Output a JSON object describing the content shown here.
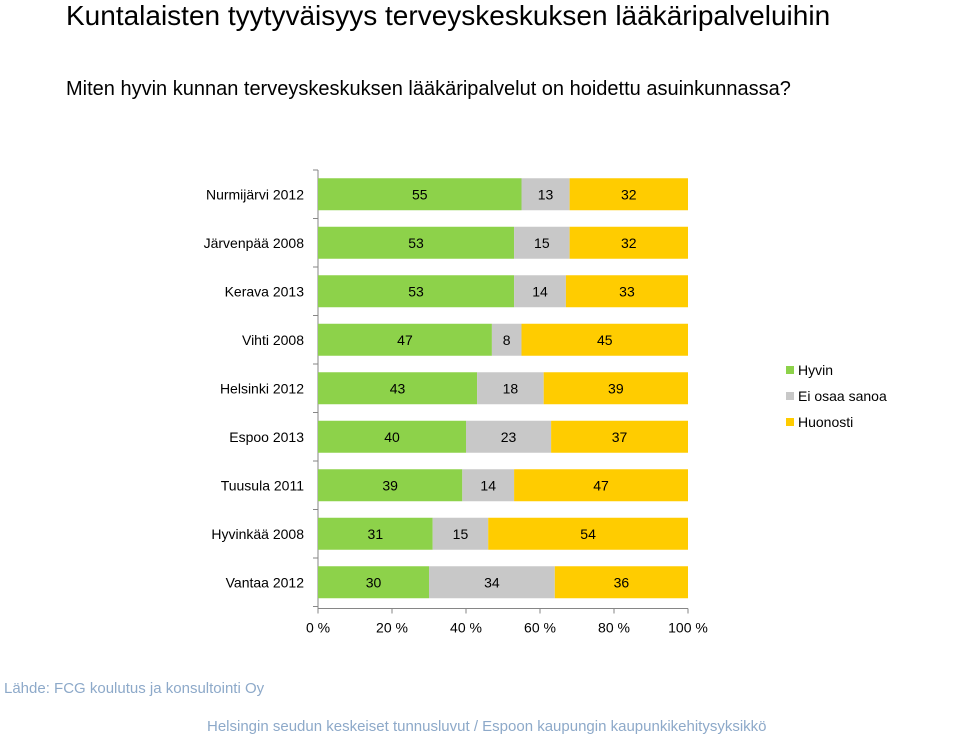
{
  "title": "Kuntalaisten tyytyväisyys terveyskeskuksen lääkäripalveluihin",
  "question": "Miten hyvin kunnan terveyskeskuksen lääkäripalvelut on hoidettu asuinkunnassa?",
  "source": "Lähde: FCG koulutus ja konsultointi Oy",
  "footer": "Helsingin seudun keskeiset tunnusluvut / Espoon kaupungin kaupunkikehitysyksikkö",
  "chart_data": {
    "type": "bar",
    "orientation": "horizontal",
    "stacked": "percent",
    "categories": [
      "Nurmijärvi 2012",
      "Järvenpää 2008",
      "Kerava 2013",
      "Vihti 2008",
      "Helsinki 2012",
      "Espoo 2013",
      "Tuusula 2011",
      "Hyvinkää 2008",
      "Vantaa 2012"
    ],
    "series": [
      {
        "name": "Hyvin",
        "color": "#8dd24a",
        "values": [
          55,
          53,
          53,
          47,
          43,
          40,
          39,
          31,
          30
        ]
      },
      {
        "name": "Ei osaa sanoa",
        "color": "#c8c8c8",
        "values": [
          13,
          15,
          14,
          8,
          18,
          23,
          14,
          15,
          34
        ]
      },
      {
        "name": "Huonosti",
        "color": "#ffcc00",
        "values": [
          32,
          32,
          33,
          45,
          39,
          37,
          47,
          54,
          36
        ]
      }
    ],
    "x_ticks": [
      "0 %",
      "20 %",
      "40 %",
      "60 %",
      "80 %",
      "100 %"
    ],
    "xlim": [
      0,
      100
    ],
    "legend_position": "right"
  }
}
